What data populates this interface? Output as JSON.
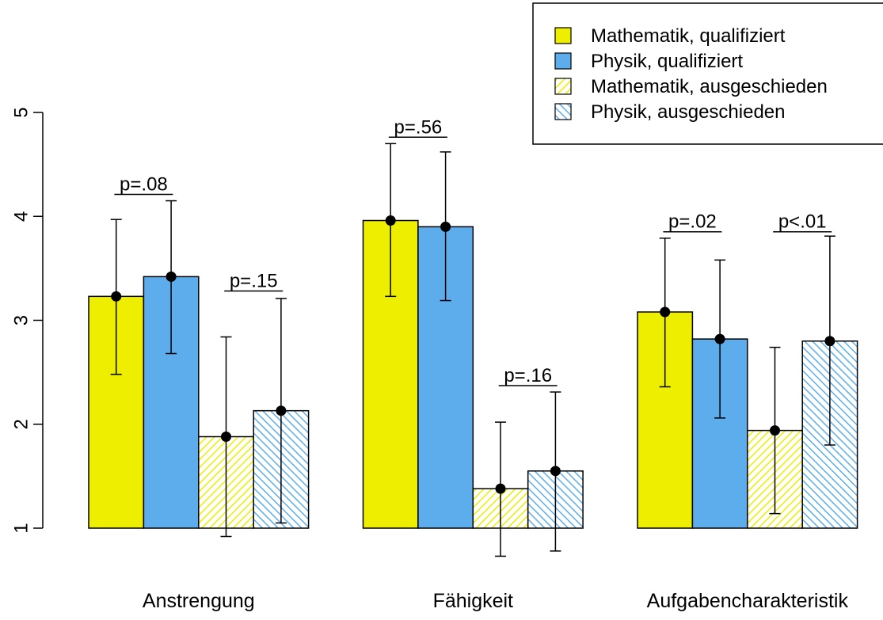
{
  "chart_data": {
    "type": "bar",
    "categories": [
      "Anstrengung",
      "Fähigkeit",
      "Aufgabencharakteristik"
    ],
    "ylim": [
      1,
      5
    ],
    "yticks": [
      1,
      2,
      3,
      4,
      5
    ],
    "series": [
      {
        "name": "Mathematik, qualifiziert",
        "color": "#EEEE00",
        "pattern": "solid",
        "values": [
          3.23,
          3.96,
          3.08
        ],
        "error_low": [
          2.48,
          3.23,
          2.36
        ],
        "error_high": [
          3.97,
          4.7,
          3.79
        ]
      },
      {
        "name": "Physik, qualifiziert",
        "color": "#5DADEC",
        "pattern": "solid",
        "values": [
          3.42,
          3.9,
          2.82
        ],
        "error_low": [
          2.68,
          3.19,
          2.06
        ],
        "error_high": [
          4.15,
          4.62,
          3.58
        ]
      },
      {
        "name": "Mathematik, ausgeschieden",
        "color": "#EEEE00",
        "pattern": "hatched",
        "values": [
          1.88,
          1.38,
          1.94
        ],
        "error_low": [
          0.92,
          0.73,
          1.14
        ],
        "error_high": [
          2.84,
          2.02,
          2.74
        ]
      },
      {
        "name": "Physik, ausgeschieden",
        "color": "#5DADEC",
        "pattern": "hatched",
        "values": [
          2.13,
          1.55,
          2.8
        ],
        "error_low": [
          1.05,
          0.78,
          1.8
        ],
        "error_high": [
          3.21,
          2.31,
          3.81
        ]
      }
    ],
    "annotations": [
      {
        "text": "p=.08",
        "category": 0,
        "pair": 0,
        "y": 4.25
      },
      {
        "text": "p=.15",
        "category": 0,
        "pair": 1,
        "y": 3.32
      },
      {
        "text": "p=.56",
        "category": 1,
        "pair": 0,
        "y": 4.8
      },
      {
        "text": "p=.16",
        "category": 1,
        "pair": 1,
        "y": 2.41
      },
      {
        "text": "p=.02",
        "category": 2,
        "pair": 0,
        "y": 3.89
      },
      {
        "text": "p<.01",
        "category": 2,
        "pair": 1,
        "y": 3.89
      }
    ],
    "legend_position": "top-right",
    "grid": false
  }
}
